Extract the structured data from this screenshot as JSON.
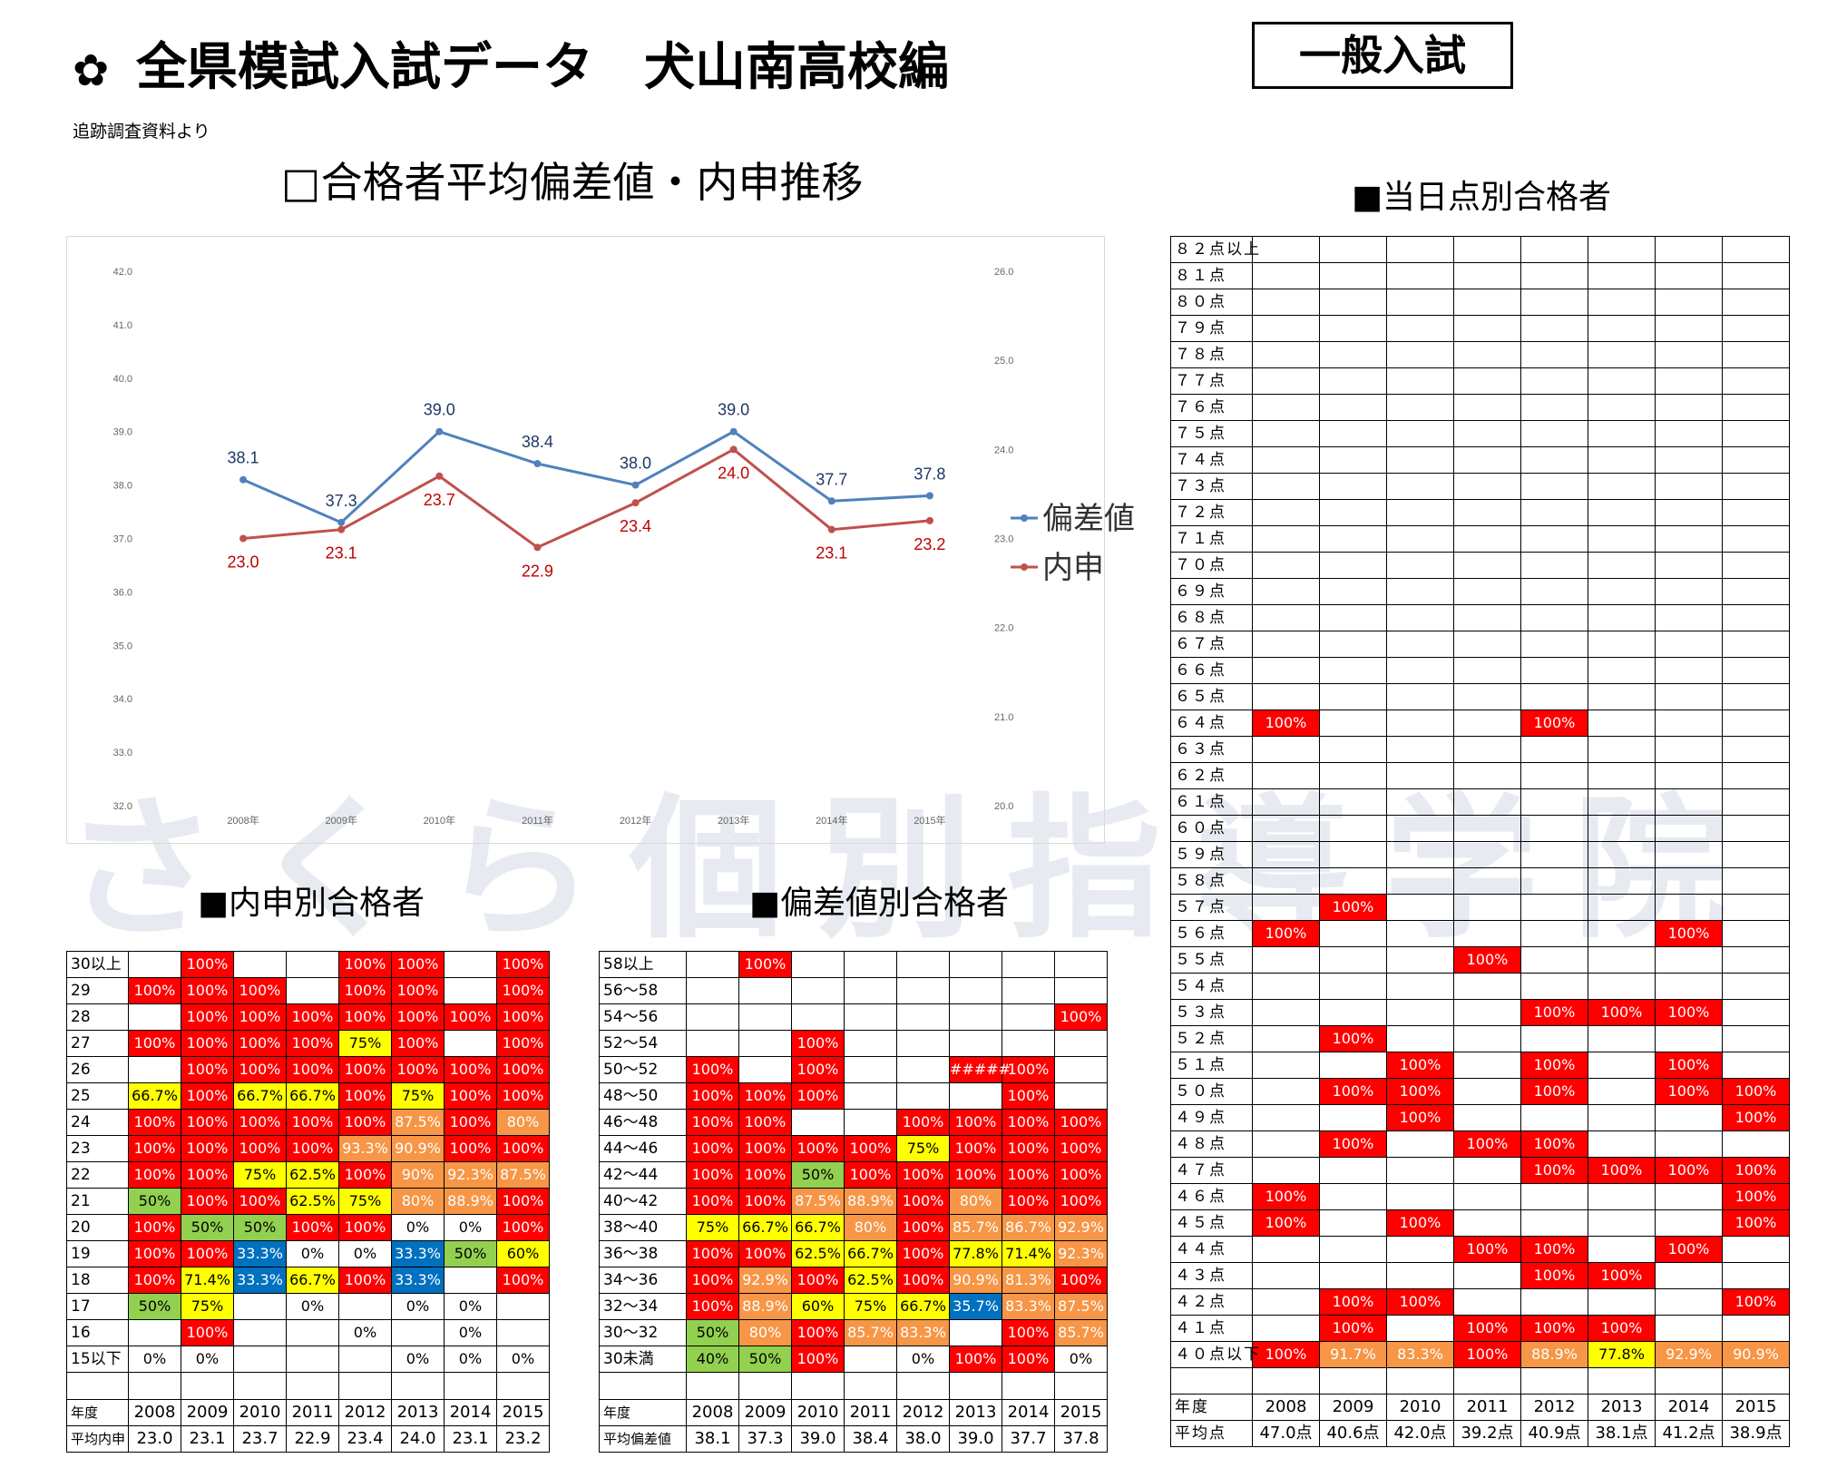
{
  "header": {
    "title": "全県模試入試データ　犬山南高校編",
    "badge": "一般入試",
    "source": "追跡調査資料より"
  },
  "chart_title": "□合格者平均偏差値・内申推移",
  "watermark": "さくら個別指導学院",
  "colors": {
    "red": "#ff0000",
    "orange": "#f79646",
    "yellow": "#ffff00",
    "green": "#92d050",
    "blue": "#0070c0",
    "hensa_line": "#4f81bd",
    "naishin_line": "#c0504d"
  },
  "chart_data": {
    "type": "line",
    "categories": [
      "2008年",
      "2009年",
      "2010年",
      "2011年",
      "2012年",
      "2013年",
      "2014年",
      "2015年"
    ],
    "series": [
      {
        "name": "偏差値",
        "axis": "left",
        "values": [
          38.1,
          37.3,
          39.0,
          38.4,
          38.0,
          39.0,
          37.7,
          37.8
        ]
      },
      {
        "name": "内申",
        "axis": "right",
        "values": [
          23.0,
          23.1,
          23.7,
          22.9,
          23.4,
          24.0,
          23.1,
          23.2
        ]
      }
    ],
    "y_left": {
      "ticks": [
        "42.0",
        "41.0",
        "40.0",
        "39.0",
        "38.0",
        "37.0",
        "36.0",
        "35.0",
        "34.0",
        "33.0",
        "32.0"
      ],
      "range": [
        32,
        42
      ]
    },
    "y_right": {
      "ticks": [
        "26.0",
        "25.0",
        "24.0",
        "23.0",
        "22.0",
        "21.0",
        "20.0"
      ],
      "range": [
        20,
        26
      ]
    },
    "legend": "right"
  },
  "naishin_table": {
    "title": "■内申別合格者",
    "rows": [
      {
        "label": "30以上",
        "cells": [
          "",
          "100%",
          "",
          "",
          "100%",
          "100%",
          "",
          "100%"
        ]
      },
      {
        "label": "29",
        "cells": [
          "100%",
          "100%",
          "100%",
          "",
          "100%",
          "100%",
          "",
          "100%"
        ]
      },
      {
        "label": "28",
        "cells": [
          "",
          "100%",
          "100%",
          "100%",
          "100%",
          "100%",
          "100%",
          "100%"
        ]
      },
      {
        "label": "27",
        "cells": [
          "100%",
          "100%",
          "100%",
          "100%",
          "75%",
          "100%",
          "",
          "100%"
        ]
      },
      {
        "label": "26",
        "cells": [
          "",
          "100%",
          "100%",
          "100%",
          "100%",
          "100%",
          "100%",
          "100%"
        ]
      },
      {
        "label": "25",
        "cells": [
          "66.7%",
          "100%",
          "66.7%",
          "66.7%",
          "100%",
          "75%",
          "100%",
          "100%"
        ]
      },
      {
        "label": "24",
        "cells": [
          "100%",
          "100%",
          "100%",
          "100%",
          "100%",
          "87.5%",
          "100%",
          "80%"
        ]
      },
      {
        "label": "23",
        "cells": [
          "100%",
          "100%",
          "100%",
          "100%",
          "93.3%",
          "90.9%",
          "100%",
          "100%"
        ]
      },
      {
        "label": "22",
        "cells": [
          "100%",
          "100%",
          "75%",
          "62.5%",
          "100%",
          "90%",
          "92.3%",
          "87.5%"
        ]
      },
      {
        "label": "21",
        "cells": [
          "50%",
          "100%",
          "100%",
          "62.5%",
          "75%",
          "80%",
          "88.9%",
          "100%"
        ]
      },
      {
        "label": "20",
        "cells": [
          "100%",
          "50%",
          "50%",
          "100%",
          "100%",
          "0%",
          "0%",
          "100%"
        ]
      },
      {
        "label": "19",
        "cells": [
          "100%",
          "100%",
          "33.3%",
          "0%",
          "0%",
          "33.3%",
          "50%",
          "60%"
        ]
      },
      {
        "label": "18",
        "cells": [
          "100%",
          "71.4%",
          "33.3%",
          "66.7%",
          "100%",
          "33.3%",
          "",
          "100%"
        ]
      },
      {
        "label": "17",
        "cells": [
          "50%",
          "75%",
          "",
          "0%",
          "",
          "0%",
          "0%",
          ""
        ]
      },
      {
        "label": "16",
        "cells": [
          "",
          "100%",
          "",
          "",
          "0%",
          "",
          "0%",
          ""
        ]
      },
      {
        "label": "15以下",
        "cells": [
          "0%",
          "0%",
          "",
          "",
          "",
          "0%",
          "0%",
          "0%"
        ]
      }
    ],
    "year_label": "年度",
    "avg_label": "平均内申",
    "averages": [
      "23.0",
      "23.1",
      "23.7",
      "22.9",
      "23.4",
      "24.0",
      "23.1",
      "23.2"
    ]
  },
  "hensa_table": {
    "title": "■偏差値別合格者",
    "rows": [
      {
        "label": "58以上",
        "cells": [
          "",
          "100%",
          "",
          "",
          "",
          "",
          "",
          ""
        ]
      },
      {
        "label": "56～58",
        "cells": [
          "",
          "",
          "",
          "",
          "",
          "",
          "",
          ""
        ]
      },
      {
        "label": "54～56",
        "cells": [
          "",
          "",
          "",
          "",
          "",
          "",
          "",
          "100%"
        ]
      },
      {
        "label": "52～54",
        "cells": [
          "",
          "",
          "100%",
          "",
          "",
          "",
          "",
          ""
        ]
      },
      {
        "label": "50～52",
        "cells": [
          "100%",
          "",
          "100%",
          "",
          "",
          "#####",
          "100%",
          ""
        ]
      },
      {
        "label": "48～50",
        "cells": [
          "100%",
          "100%",
          "100%",
          "",
          "",
          "",
          "100%",
          ""
        ]
      },
      {
        "label": "46～48",
        "cells": [
          "100%",
          "100%",
          "",
          "",
          "100%",
          "100%",
          "100%",
          "100%"
        ]
      },
      {
        "label": "44～46",
        "cells": [
          "100%",
          "100%",
          "100%",
          "100%",
          "75%",
          "100%",
          "100%",
          "100%"
        ]
      },
      {
        "label": "42～44",
        "cells": [
          "100%",
          "100%",
          "50%",
          "100%",
          "100%",
          "100%",
          "100%",
          "100%"
        ]
      },
      {
        "label": "40～42",
        "cells": [
          "100%",
          "100%",
          "87.5%",
          "88.9%",
          "100%",
          "80%",
          "100%",
          "100%"
        ]
      },
      {
        "label": "38～40",
        "cells": [
          "75%",
          "66.7%",
          "66.7%",
          "80%",
          "100%",
          "85.7%",
          "86.7%",
          "92.9%"
        ]
      },
      {
        "label": "36～38",
        "cells": [
          "100%",
          "100%",
          "62.5%",
          "66.7%",
          "100%",
          "77.8%",
          "71.4%",
          "92.3%"
        ]
      },
      {
        "label": "34～36",
        "cells": [
          "100%",
          "92.9%",
          "100%",
          "62.5%",
          "100%",
          "90.9%",
          "81.3%",
          "100%"
        ]
      },
      {
        "label": "32～34",
        "cells": [
          "100%",
          "88.9%",
          "60%",
          "75%",
          "66.7%",
          "35.7%",
          "83.3%",
          "87.5%"
        ]
      },
      {
        "label": "30～32",
        "cells": [
          "50%",
          "80%",
          "100%",
          "85.7%",
          "83.3%",
          "",
          "100%",
          "85.7%"
        ]
      },
      {
        "label": "30未満",
        "cells": [
          "40%",
          "50%",
          "100%",
          "",
          "0%",
          "100%",
          "100%",
          "0%"
        ]
      }
    ],
    "year_label": "年度",
    "avg_label": "平均偏差値",
    "averages": [
      "38.1",
      "37.3",
      "39.0",
      "38.4",
      "38.0",
      "39.0",
      "37.7",
      "37.8"
    ]
  },
  "score_table": {
    "title": "■当日点別合格者",
    "rows": [
      {
        "label": "８２点以上",
        "cells": [
          "",
          "",
          "",
          "",
          "",
          "",
          "",
          ""
        ]
      },
      {
        "label": "８１点",
        "cells": [
          "",
          "",
          "",
          "",
          "",
          "",
          "",
          ""
        ]
      },
      {
        "label": "８０点",
        "cells": [
          "",
          "",
          "",
          "",
          "",
          "",
          "",
          ""
        ]
      },
      {
        "label": "７９点",
        "cells": [
          "",
          "",
          "",
          "",
          "",
          "",
          "",
          ""
        ]
      },
      {
        "label": "７８点",
        "cells": [
          "",
          "",
          "",
          "",
          "",
          "",
          "",
          ""
        ]
      },
      {
        "label": "７７点",
        "cells": [
          "",
          "",
          "",
          "",
          "",
          "",
          "",
          ""
        ]
      },
      {
        "label": "７６点",
        "cells": [
          "",
          "",
          "",
          "",
          "",
          "",
          "",
          ""
        ]
      },
      {
        "label": "７５点",
        "cells": [
          "",
          "",
          "",
          "",
          "",
          "",
          "",
          ""
        ]
      },
      {
        "label": "７４点",
        "cells": [
          "",
          "",
          "",
          "",
          "",
          "",
          "",
          ""
        ]
      },
      {
        "label": "７３点",
        "cells": [
          "",
          "",
          "",
          "",
          "",
          "",
          "",
          ""
        ]
      },
      {
        "label": "７２点",
        "cells": [
          "",
          "",
          "",
          "",
          "",
          "",
          "",
          ""
        ]
      },
      {
        "label": "７１点",
        "cells": [
          "",
          "",
          "",
          "",
          "",
          "",
          "",
          ""
        ]
      },
      {
        "label": "７０点",
        "cells": [
          "",
          "",
          "",
          "",
          "",
          "",
          "",
          ""
        ]
      },
      {
        "label": "６９点",
        "cells": [
          "",
          "",
          "",
          "",
          "",
          "",
          "",
          ""
        ]
      },
      {
        "label": "６８点",
        "cells": [
          "",
          "",
          "",
          "",
          "",
          "",
          "",
          ""
        ]
      },
      {
        "label": "６７点",
        "cells": [
          "",
          "",
          "",
          "",
          "",
          "",
          "",
          ""
        ]
      },
      {
        "label": "６６点",
        "cells": [
          "",
          "",
          "",
          "",
          "",
          "",
          "",
          ""
        ]
      },
      {
        "label": "６５点",
        "cells": [
          "",
          "",
          "",
          "",
          "",
          "",
          "",
          ""
        ]
      },
      {
        "label": "６４点",
        "cells": [
          "100%",
          "",
          "",
          "",
          "100%",
          "",
          "",
          ""
        ]
      },
      {
        "label": "６３点",
        "cells": [
          "",
          "",
          "",
          "",
          "",
          "",
          "",
          ""
        ]
      },
      {
        "label": "６２点",
        "cells": [
          "",
          "",
          "",
          "",
          "",
          "",
          "",
          ""
        ]
      },
      {
        "label": "６１点",
        "cells": [
          "",
          "",
          "",
          "",
          "",
          "",
          "",
          ""
        ]
      },
      {
        "label": "６０点",
        "cells": [
          "",
          "",
          "",
          "",
          "",
          "",
          "",
          ""
        ]
      },
      {
        "label": "５９点",
        "cells": [
          "",
          "",
          "",
          "",
          "",
          "",
          "",
          ""
        ]
      },
      {
        "label": "５８点",
        "cells": [
          "",
          "",
          "",
          "",
          "",
          "",
          "",
          ""
        ]
      },
      {
        "label": "５７点",
        "cells": [
          "",
          "100%",
          "",
          "",
          "",
          "",
          "",
          ""
        ]
      },
      {
        "label": "５６点",
        "cells": [
          "100%",
          "",
          "",
          "",
          "",
          "",
          "100%",
          ""
        ]
      },
      {
        "label": "５５点",
        "cells": [
          "",
          "",
          "",
          "100%",
          "",
          "",
          "",
          ""
        ]
      },
      {
        "label": "５４点",
        "cells": [
          "",
          "",
          "",
          "",
          "",
          "",
          "",
          ""
        ]
      },
      {
        "label": "５３点",
        "cells": [
          "",
          "",
          "",
          "",
          "100%",
          "100%",
          "100%",
          ""
        ]
      },
      {
        "label": "５２点",
        "cells": [
          "",
          "100%",
          "",
          "",
          "",
          "",
          "",
          ""
        ]
      },
      {
        "label": "５１点",
        "cells": [
          "",
          "",
          "100%",
          "",
          "100%",
          "",
          "100%",
          ""
        ]
      },
      {
        "label": "５０点",
        "cells": [
          "",
          "100%",
          "100%",
          "",
          "100%",
          "",
          "100%",
          "100%"
        ]
      },
      {
        "label": "４９点",
        "cells": [
          "",
          "",
          "100%",
          "",
          "",
          "",
          "",
          "100%"
        ]
      },
      {
        "label": "４８点",
        "cells": [
          "",
          "100%",
          "",
          "100%",
          "100%",
          "",
          "",
          ""
        ]
      },
      {
        "label": "４７点",
        "cells": [
          "",
          "",
          "",
          "",
          "100%",
          "100%",
          "100%",
          "100%"
        ]
      },
      {
        "label": "４６点",
        "cells": [
          "100%",
          "",
          "",
          "",
          "",
          "",
          "",
          "100%"
        ]
      },
      {
        "label": "４５点",
        "cells": [
          "100%",
          "",
          "100%",
          "",
          "",
          "",
          "",
          "100%"
        ]
      },
      {
        "label": "４４点",
        "cells": [
          "",
          "",
          "",
          "100%",
          "100%",
          "",
          "100%",
          ""
        ]
      },
      {
        "label": "４３点",
        "cells": [
          "",
          "",
          "",
          "",
          "100%",
          "100%",
          "",
          ""
        ]
      },
      {
        "label": "４２点",
        "cells": [
          "",
          "100%",
          "100%",
          "",
          "",
          "",
          "",
          "100%"
        ]
      },
      {
        "label": "４１点",
        "cells": [
          "",
          "100%",
          "",
          "100%",
          "100%",
          "100%",
          "",
          ""
        ]
      },
      {
        "label": "４０点以下",
        "cells": [
          "100%",
          "91.7%",
          "83.3%",
          "100%",
          "88.9%",
          "77.8%",
          "92.9%",
          "90.9%"
        ]
      }
    ],
    "year_label": "年度",
    "avg_label": "平均点",
    "averages": [
      "47.0点",
      "40.6点",
      "42.0点",
      "39.2点",
      "40.9点",
      "38.1点",
      "41.2点",
      "38.9点"
    ]
  },
  "years": [
    "2008",
    "2009",
    "2010",
    "2011",
    "2012",
    "2013",
    "2014",
    "2015"
  ]
}
